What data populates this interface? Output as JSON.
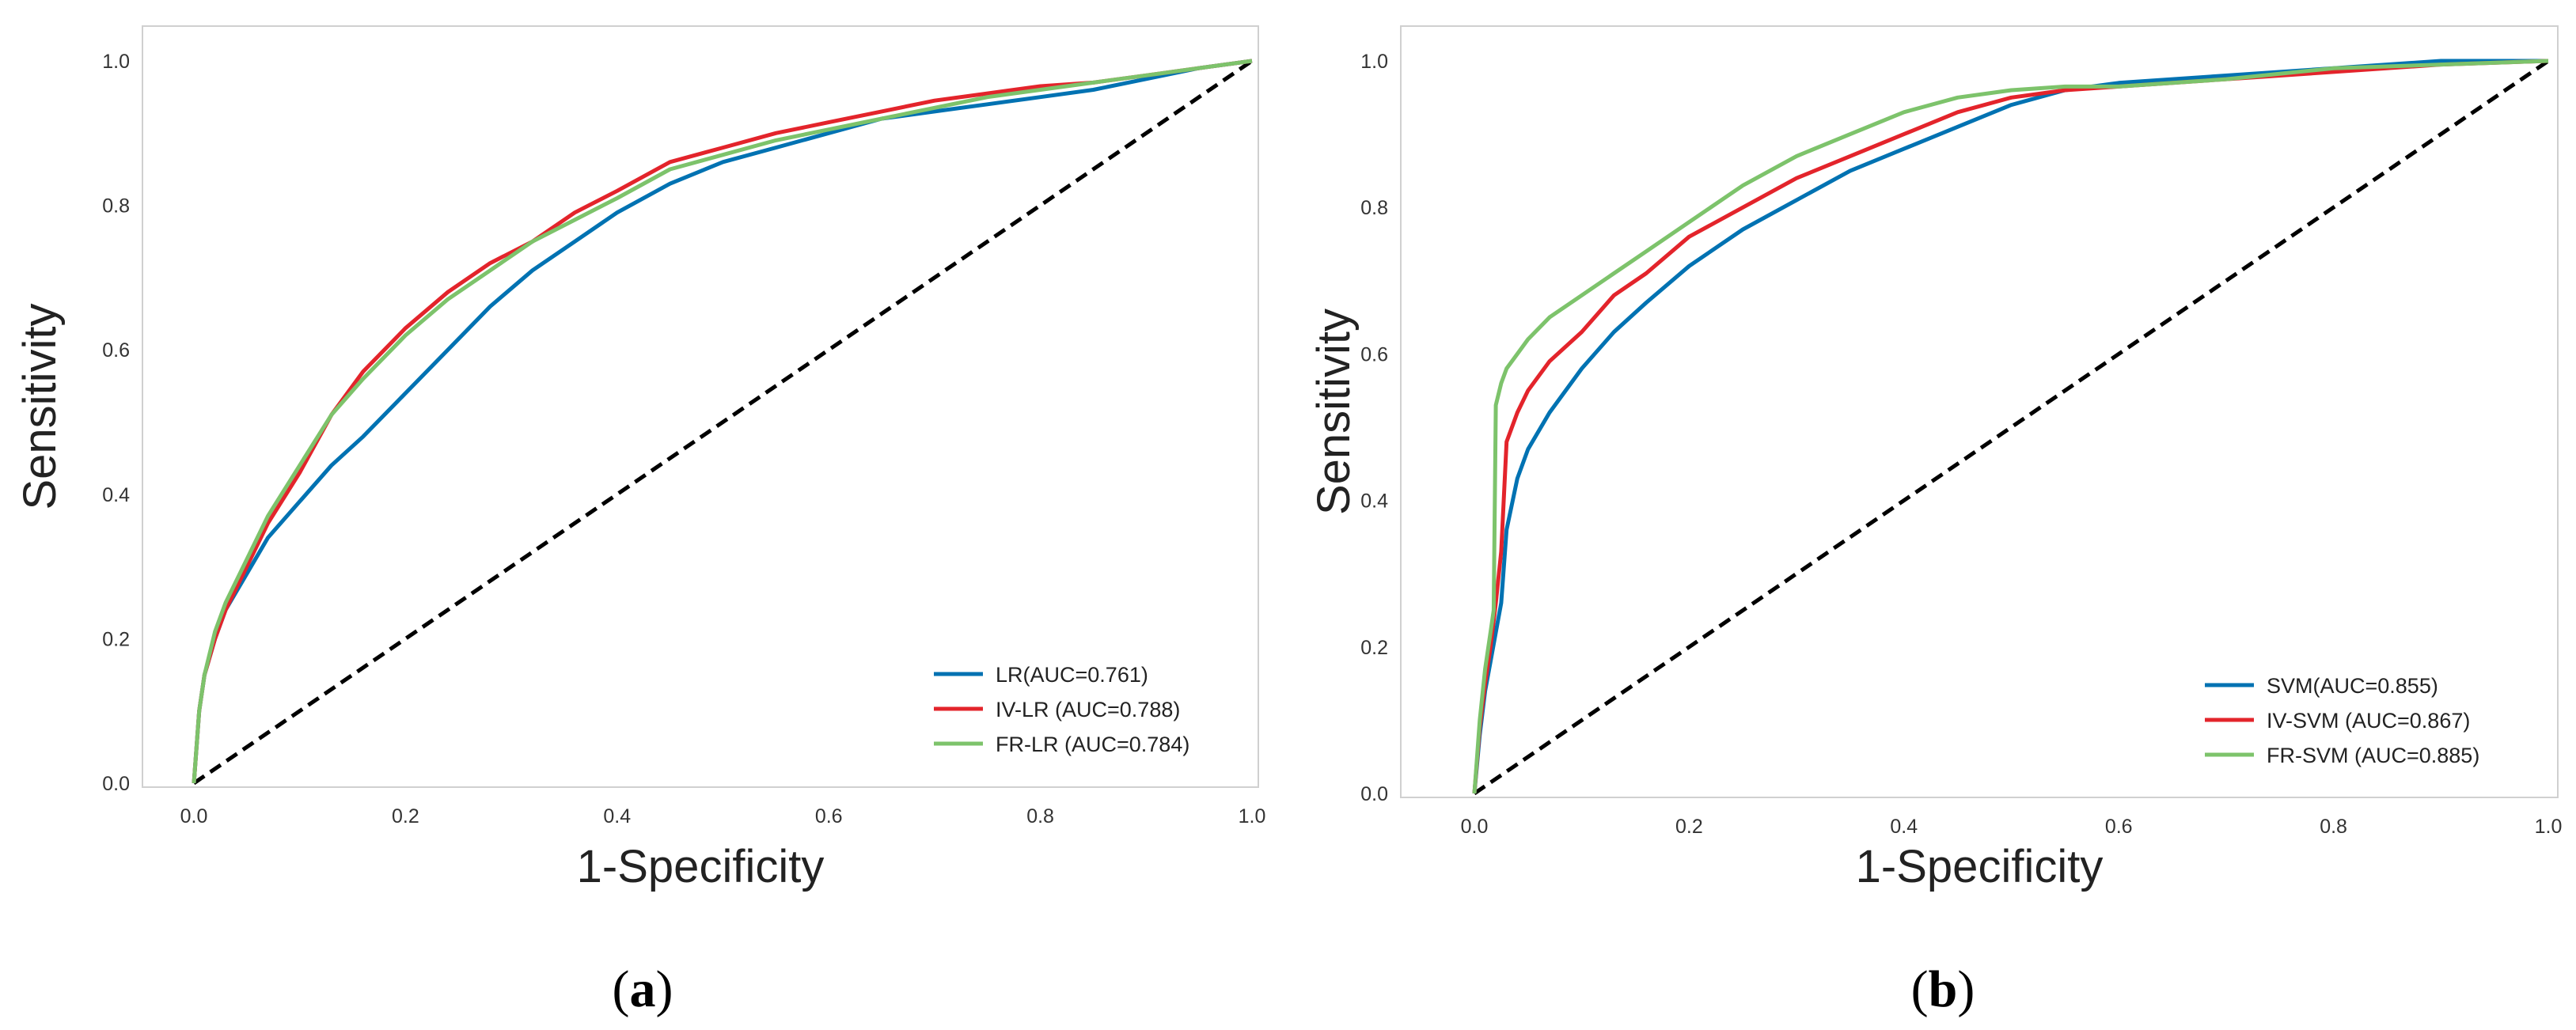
{
  "colors": {
    "blue": "#0072B2",
    "red": "#E3242B",
    "green": "#7DC36B",
    "diagonal": "#000000",
    "frame": "#d0d0d0"
  },
  "chart_data": [
    {
      "type": "line",
      "caption_letter": "a",
      "xlabel": "1-Specificity",
      "ylabel": "Sensitivity",
      "xlim": [
        0,
        1
      ],
      "ylim": [
        0,
        1
      ],
      "x_ticks": [
        "0.0",
        "0.2",
        "0.4",
        "0.6",
        "0.8",
        "1.0"
      ],
      "y_ticks": [
        "0.0",
        "0.2",
        "0.4",
        "0.6",
        "0.8",
        "1.0"
      ],
      "grid": false,
      "legend_position": "bottom-right",
      "diagonal": {
        "style": "dashed",
        "x": [
          0,
          1
        ],
        "y": [
          0,
          1
        ]
      },
      "series": [
        {
          "name": "LR(AUC=0.761)",
          "color": "blue",
          "x": [
            0,
            0.005,
            0.01,
            0.02,
            0.03,
            0.05,
            0.07,
            0.1,
            0.13,
            0.16,
            0.2,
            0.24,
            0.28,
            0.32,
            0.36,
            0.4,
            0.45,
            0.5,
            0.55,
            0.6,
            0.65,
            0.7,
            0.75,
            0.8,
            0.85,
            0.9,
            0.95,
            1.0
          ],
          "y": [
            0,
            0.1,
            0.15,
            0.2,
            0.24,
            0.29,
            0.34,
            0.39,
            0.44,
            0.48,
            0.54,
            0.6,
            0.66,
            0.71,
            0.75,
            0.79,
            0.83,
            0.86,
            0.88,
            0.9,
            0.92,
            0.93,
            0.94,
            0.95,
            0.96,
            0.975,
            0.99,
            1.0
          ]
        },
        {
          "name": "IV-LR (AUC=0.788)",
          "color": "red",
          "x": [
            0,
            0.005,
            0.01,
            0.02,
            0.03,
            0.05,
            0.07,
            0.1,
            0.13,
            0.16,
            0.2,
            0.24,
            0.28,
            0.32,
            0.36,
            0.4,
            0.45,
            0.5,
            0.55,
            0.6,
            0.65,
            0.7,
            0.75,
            0.8,
            0.85,
            0.9,
            0.95,
            1.0
          ],
          "y": [
            0,
            0.1,
            0.15,
            0.2,
            0.24,
            0.3,
            0.36,
            0.43,
            0.51,
            0.57,
            0.63,
            0.68,
            0.72,
            0.75,
            0.79,
            0.82,
            0.86,
            0.88,
            0.9,
            0.915,
            0.93,
            0.945,
            0.955,
            0.965,
            0.97,
            0.98,
            0.99,
            1.0
          ]
        },
        {
          "name": "FR-LR (AUC=0.784)",
          "color": "green",
          "x": [
            0,
            0.005,
            0.01,
            0.02,
            0.03,
            0.05,
            0.07,
            0.1,
            0.13,
            0.16,
            0.2,
            0.24,
            0.28,
            0.32,
            0.36,
            0.4,
            0.45,
            0.5,
            0.55,
            0.6,
            0.65,
            0.7,
            0.75,
            0.8,
            0.85,
            0.9,
            0.95,
            1.0
          ],
          "y": [
            0,
            0.1,
            0.15,
            0.21,
            0.25,
            0.31,
            0.37,
            0.44,
            0.51,
            0.56,
            0.62,
            0.67,
            0.71,
            0.75,
            0.78,
            0.81,
            0.85,
            0.87,
            0.89,
            0.905,
            0.92,
            0.935,
            0.95,
            0.96,
            0.97,
            0.98,
            0.99,
            1.0
          ]
        }
      ]
    },
    {
      "type": "line",
      "caption_letter": "b",
      "xlabel": "1-Specificity",
      "ylabel": "Sensitivity",
      "xlim": [
        0,
        1
      ],
      "ylim": [
        0,
        1
      ],
      "x_ticks": [
        "0.0",
        "0.2",
        "0.4",
        "0.6",
        "0.8",
        "1.0"
      ],
      "y_ticks": [
        "0.0",
        "0.2",
        "0.4",
        "0.6",
        "0.8",
        "1.0"
      ],
      "grid": false,
      "legend_position": "bottom-right",
      "diagonal": {
        "style": "dashed",
        "x": [
          0,
          1
        ],
        "y": [
          0,
          1
        ]
      },
      "series": [
        {
          "name": "SVM(AUC=0.855)",
          "color": "blue",
          "x": [
            0,
            0.005,
            0.01,
            0.015,
            0.02,
            0.025,
            0.03,
            0.04,
            0.05,
            0.07,
            0.1,
            0.13,
            0.16,
            0.2,
            0.25,
            0.3,
            0.35,
            0.4,
            0.45,
            0.5,
            0.55,
            0.6,
            0.7,
            0.8,
            0.9,
            1.0
          ],
          "y": [
            0,
            0.08,
            0.14,
            0.18,
            0.22,
            0.26,
            0.36,
            0.43,
            0.47,
            0.52,
            0.58,
            0.63,
            0.67,
            0.72,
            0.77,
            0.81,
            0.85,
            0.88,
            0.91,
            0.94,
            0.96,
            0.97,
            0.98,
            0.99,
            1.0,
            1.0
          ]
        },
        {
          "name": "IV-SVM (AUC=0.867)",
          "color": "red",
          "x": [
            0,
            0.005,
            0.01,
            0.015,
            0.02,
            0.025,
            0.03,
            0.04,
            0.05,
            0.07,
            0.1,
            0.13,
            0.16,
            0.2,
            0.25,
            0.3,
            0.35,
            0.4,
            0.45,
            0.5,
            0.55,
            0.6,
            0.7,
            0.8,
            0.9,
            1.0
          ],
          "y": [
            0,
            0.09,
            0.15,
            0.2,
            0.26,
            0.33,
            0.48,
            0.52,
            0.55,
            0.59,
            0.63,
            0.68,
            0.71,
            0.76,
            0.8,
            0.84,
            0.87,
            0.9,
            0.93,
            0.95,
            0.96,
            0.965,
            0.975,
            0.985,
            0.995,
            1.0
          ]
        },
        {
          "name": "FR-SVM (AUC=0.885)",
          "color": "green",
          "x": [
            0,
            0.005,
            0.01,
            0.015,
            0.018,
            0.02,
            0.025,
            0.03,
            0.04,
            0.05,
            0.07,
            0.1,
            0.13,
            0.16,
            0.2,
            0.25,
            0.3,
            0.35,
            0.4,
            0.45,
            0.5,
            0.55,
            0.6,
            0.7,
            0.8,
            0.9,
            1.0
          ],
          "y": [
            0,
            0.1,
            0.17,
            0.22,
            0.25,
            0.53,
            0.56,
            0.58,
            0.6,
            0.62,
            0.65,
            0.68,
            0.71,
            0.74,
            0.78,
            0.83,
            0.87,
            0.9,
            0.93,
            0.95,
            0.96,
            0.965,
            0.965,
            0.975,
            0.99,
            0.995,
            1.0
          ]
        }
      ]
    }
  ]
}
